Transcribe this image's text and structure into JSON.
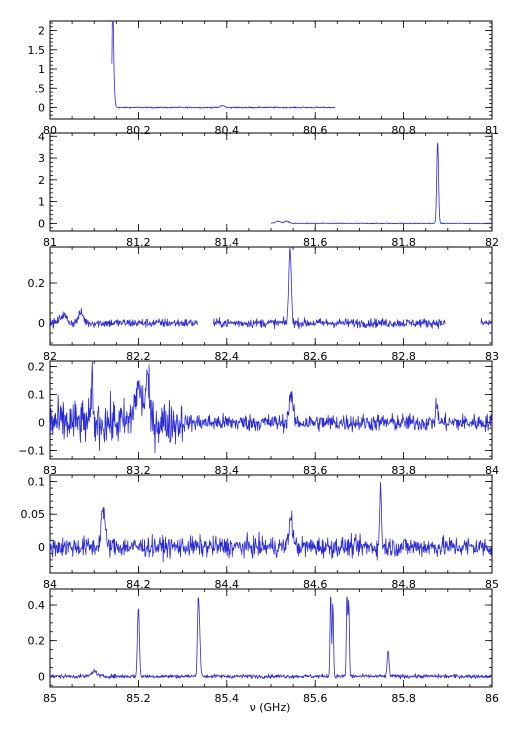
{
  "xlabel": "ν (GHz)",
  "colors": {
    "trace": "#2b2bd6",
    "axes": "#000000",
    "background": "#ffffff"
  },
  "chart_data": [
    {
      "type": "line",
      "xlim": [
        80,
        81
      ],
      "ylim": [
        -0.3,
        2.25
      ],
      "xticks": {
        "major": [
          80,
          80.2,
          80.4,
          80.6,
          80.8,
          81
        ],
        "labels": [
          "80",
          "80.2",
          "80.4",
          "80.6",
          "80.8",
          "81"
        ],
        "minor_step": 0.05
      },
      "yticks": {
        "major": [
          0,
          0.5,
          1,
          1.5,
          2
        ],
        "labels": [
          "0",
          ".5",
          "1",
          "1.5",
          "2"
        ],
        "minor_step": 0.1
      },
      "coverage": [
        [
          80.14,
          80.645
        ]
      ],
      "noise": 0.012,
      "lines": [
        {
          "x": 80.142,
          "peak": 2.15,
          "width": 0.0018
        },
        {
          "x": 80.143,
          "peak": 1.05,
          "width": 0.0035
        },
        {
          "x": 80.39,
          "peak": 0.05,
          "width": 0.006
        }
      ]
    },
    {
      "type": "line",
      "xlim": [
        81,
        82
      ],
      "ylim": [
        -0.35,
        4.15
      ],
      "xticks": {
        "major": [
          81,
          81.2,
          81.4,
          81.6,
          81.8,
          82
        ],
        "labels": [
          "81",
          "81.2",
          "81.4",
          "81.6",
          "81.8",
          "82"
        ],
        "minor_step": 0.05
      },
      "yticks": {
        "major": [
          0,
          1,
          2,
          3,
          4
        ],
        "labels": [
          "0",
          "1",
          "2",
          "3",
          "4"
        ],
        "minor_step": 0.2
      },
      "coverage": [
        [
          81.5,
          82.0
        ]
      ],
      "noise": 0.015,
      "lines": [
        {
          "x": 81.877,
          "peak": 3.8,
          "width": 0.0028
        },
        {
          "x": 81.515,
          "peak": 0.1,
          "width": 0.008
        },
        {
          "x": 81.535,
          "peak": 0.1,
          "width": 0.008
        }
      ]
    },
    {
      "type": "line",
      "xlim": [
        82,
        83
      ],
      "ylim": [
        -0.11,
        0.38
      ],
      "xticks": {
        "major": [
          82,
          82.2,
          82.4,
          82.6,
          82.8,
          83
        ],
        "labels": [
          "82",
          "82.2",
          "82.4",
          "82.6",
          "82.8",
          "83"
        ],
        "minor_step": 0.05
      },
      "yticks": {
        "major": [
          0,
          0.2
        ],
        "labels": [
          "0",
          "0.2"
        ],
        "minor_step": 0.05
      },
      "coverage": [
        [
          82.0,
          82.335
        ],
        [
          82.37,
          82.895
        ],
        [
          82.975,
          83.0
        ]
      ],
      "noise": 0.016,
      "lines": [
        {
          "x": 82.543,
          "peak": 0.37,
          "width": 0.004
        },
        {
          "x": 82.03,
          "peak": 0.04,
          "width": 0.01
        },
        {
          "x": 82.07,
          "peak": 0.05,
          "width": 0.008
        }
      ]
    },
    {
      "type": "line",
      "xlim": [
        83,
        84
      ],
      "ylim": [
        -0.13,
        0.22
      ],
      "xticks": {
        "major": [
          83,
          83.2,
          83.4,
          83.6,
          83.8,
          84
        ],
        "labels": [
          "83",
          "83.2",
          "83.4",
          "83.6",
          "83.8",
          "84"
        ],
        "minor_step": 0.05
      },
      "yticks": {
        "major": [
          -0.1,
          0,
          0.1,
          0.2
        ],
        "labels": [
          "−0.1",
          "0",
          "0.1",
          "0.2"
        ],
        "minor_step": 0.02
      },
      "coverage": [
        [
          83.0,
          84.0
        ]
      ],
      "noise": 0.022,
      "noisy_region": {
        "from": 83.0,
        "to": 83.3,
        "factor": 2.6
      },
      "lines": [
        {
          "x": 83.095,
          "peak": 0.2,
          "width": 0.002
        },
        {
          "x": 83.2,
          "peak": 0.12,
          "width": 0.012
        },
        {
          "x": 83.22,
          "peak": 0.15,
          "width": 0.006
        },
        {
          "x": 83.545,
          "peak": 0.1,
          "width": 0.006
        },
        {
          "x": 83.875,
          "peak": 0.06,
          "width": 0.004
        }
      ]
    },
    {
      "type": "line",
      "xlim": [
        84,
        85
      ],
      "ylim": [
        -0.04,
        0.11
      ],
      "xticks": {
        "major": [
          84,
          84.2,
          84.4,
          84.6,
          84.8,
          85
        ],
        "labels": [
          "84",
          "84.2",
          "84.4",
          "84.6",
          "84.8",
          "85"
        ],
        "minor_step": 0.05
      },
      "yticks": {
        "major": [
          0,
          0.05,
          0.1
        ],
        "labels": [
          "0",
          "0.05",
          "0.1"
        ],
        "minor_step": 0.01
      },
      "coverage": [
        [
          84.0,
          85.0
        ]
      ],
      "noise": 0.011,
      "lines": [
        {
          "x": 84.12,
          "peak": 0.06,
          "width": 0.006
        },
        {
          "x": 84.545,
          "peak": 0.045,
          "width": 0.006
        },
        {
          "x": 84.748,
          "peak": 0.1,
          "width": 0.0025
        }
      ]
    },
    {
      "type": "line",
      "xlim": [
        85,
        86
      ],
      "ylim": [
        -0.06,
        0.49
      ],
      "xticks": {
        "major": [
          85,
          85.2,
          85.4,
          85.6,
          85.8,
          86
        ],
        "labels": [
          "85",
          "85.2",
          "85.4",
          "85.6",
          "85.8",
          "86"
        ],
        "minor_step": 0.05
      },
      "yticks": {
        "major": [
          0,
          0.2,
          0.4
        ],
        "labels": [
          "0",
          "0.2",
          "0.4"
        ],
        "minor_step": 0.05
      },
      "coverage": [
        [
          85.0,
          86.0
        ]
      ],
      "noise": 0.008,
      "lines": [
        {
          "x": 85.2,
          "peak": 0.39,
          "width": 0.003
        },
        {
          "x": 85.335,
          "peak": 0.33,
          "width": 0.0025
        },
        {
          "x": 85.338,
          "peak": 0.26,
          "width": 0.003
        },
        {
          "x": 85.635,
          "peak": 0.47,
          "width": 0.002
        },
        {
          "x": 85.64,
          "peak": 0.42,
          "width": 0.002
        },
        {
          "x": 85.672,
          "peak": 0.46,
          "width": 0.002
        },
        {
          "x": 85.676,
          "peak": 0.42,
          "width": 0.002
        },
        {
          "x": 85.765,
          "peak": 0.14,
          "width": 0.003
        },
        {
          "x": 85.1,
          "peak": 0.03,
          "width": 0.008
        }
      ]
    }
  ]
}
